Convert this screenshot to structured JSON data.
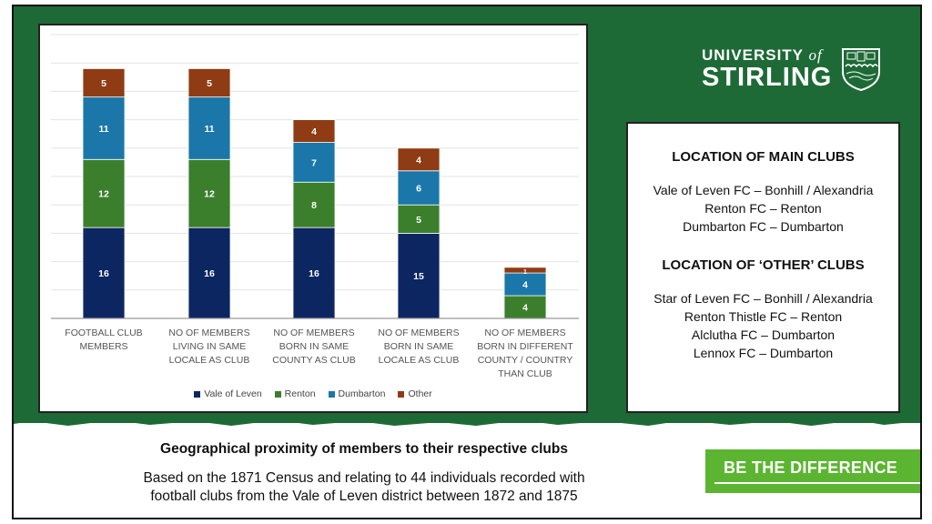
{
  "chart_data": {
    "type": "bar",
    "stacked": true,
    "categories": [
      "FOOTBALL CLUB MEMBERS",
      "NO OF MEMBERS LIVING IN SAME LOCALE AS CLUB",
      "NO OF MEMBERS BORN IN SAME COUNTY AS CLUB",
      "NO OF MEMBERS BORN IN SAME LOCALE AS CLUB",
      "NO OF MEMBERS BORN IN DIFFERENT COUNTY / COUNTRY THAN CLUB"
    ],
    "series": [
      {
        "name": "Vale of Leven",
        "color": "#0c2661",
        "values": [
          16,
          16,
          16,
          15,
          0
        ]
      },
      {
        "name": "Renton",
        "color": "#3b7f2d",
        "values": [
          12,
          12,
          8,
          5,
          4
        ]
      },
      {
        "name": "Dumbarton",
        "color": "#1b77a9",
        "values": [
          11,
          11,
          7,
          6,
          4
        ]
      },
      {
        "name": "Other",
        "color": "#8f3b14",
        "values": [
          5,
          5,
          4,
          4,
          1
        ]
      }
    ],
    "ylim": [
      0,
      50
    ],
    "grid": true,
    "legend": "bottom",
    "title": "",
    "xlabel": "",
    "ylabel": ""
  },
  "logo": {
    "line1": "UNIVERSITY",
    "of": "of",
    "line2": "STIRLING"
  },
  "info": {
    "heading1": "LOCATION OF MAIN CLUBS",
    "main": [
      "Vale of Leven FC – Bonhill / Alexandria",
      "Renton FC – Renton",
      "Dumbarton FC – Dumbarton"
    ],
    "heading2": "LOCATION OF ‘OTHER’ CLUBS",
    "other": [
      "Star of Leven FC – Bonhill / Alexandria",
      "Renton Thistle FC – Renton",
      "Alclutha FC – Dumbarton",
      "Lennox FC – Dumbarton"
    ]
  },
  "caption": {
    "title": "Geographical proximity of members to their respective clubs",
    "line1": "Based on the 1871 Census and relating to 44 individuals recorded with",
    "line2": "football clubs from the Vale of Leven district between 1872 and 1875"
  },
  "tagline": "BE THE DIFFERENCE"
}
